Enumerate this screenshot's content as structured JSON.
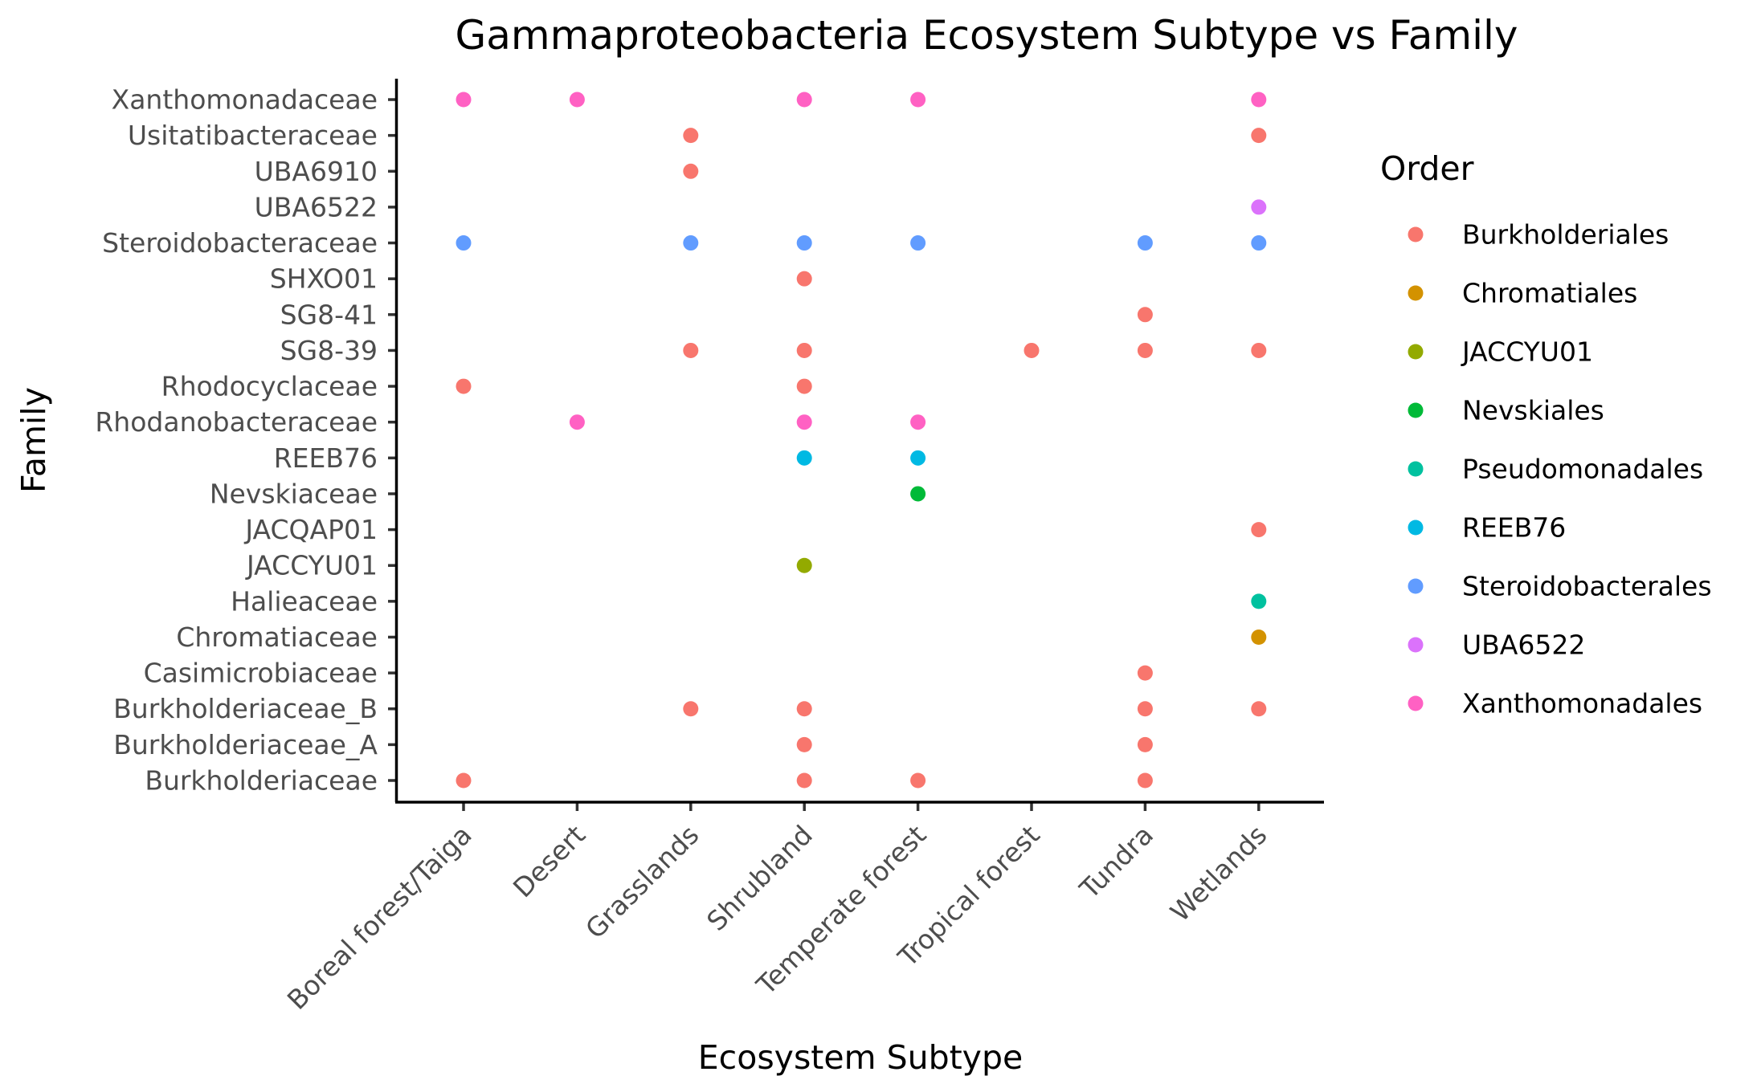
{
  "chart_data": {
    "type": "scatter",
    "title": "Gammaproteobacteria Ecosystem Subtype vs Family",
    "xlabel": "Ecosystem Subtype",
    "ylabel": "Family",
    "x_categories": [
      "Boreal forest/Taiga",
      "Desert",
      "Grasslands",
      "Shrubland",
      "Temperate forest",
      "Tropical forest",
      "Tundra",
      "Wetlands"
    ],
    "y_categories": [
      "Burkholderiaceae",
      "Burkholderiaceae_A",
      "Burkholderiaceae_B",
      "Casimicrobiaceae",
      "Chromatiaceae",
      "Halieaceae",
      "JACCYU01",
      "JACQAP01",
      "Nevskiaceae",
      "REEB76",
      "Rhodanobacteraceae",
      "Rhodocyclaceae",
      "SG8-39",
      "SG8-41",
      "SHXO01",
      "Steroidobacteraceae",
      "UBA6522",
      "UBA6910",
      "Usitatibacteraceae",
      "Xanthomonadaceae"
    ],
    "legend": {
      "title": "Order",
      "placement": "right",
      "entries": [
        {
          "name": "Burkholderiales",
          "color": "#F8766D"
        },
        {
          "name": "Chromatiales",
          "color": "#D39200"
        },
        {
          "name": "JACCYU01",
          "color": "#93AA00"
        },
        {
          "name": "Nevskiales",
          "color": "#00BA38"
        },
        {
          "name": "Pseudomonadales",
          "color": "#00C19F"
        },
        {
          "name": "REEB76",
          "color": "#00B9E3"
        },
        {
          "name": "Steroidobacterales",
          "color": "#619CFF"
        },
        {
          "name": "UBA6522",
          "color": "#DB72FB"
        },
        {
          "name": "Xanthomonadales",
          "color": "#FF61C3"
        }
      ]
    },
    "grid": false,
    "points": [
      {
        "x": "Boreal forest/Taiga",
        "y": "Xanthomonadaceae",
        "order": "Xanthomonadales"
      },
      {
        "x": "Desert",
        "y": "Xanthomonadaceae",
        "order": "Xanthomonadales"
      },
      {
        "x": "Shrubland",
        "y": "Xanthomonadaceae",
        "order": "Xanthomonadales"
      },
      {
        "x": "Temperate forest",
        "y": "Xanthomonadaceae",
        "order": "Xanthomonadales"
      },
      {
        "x": "Wetlands",
        "y": "Xanthomonadaceae",
        "order": "Xanthomonadales"
      },
      {
        "x": "Grasslands",
        "y": "Usitatibacteraceae",
        "order": "Burkholderiales"
      },
      {
        "x": "Wetlands",
        "y": "Usitatibacteraceae",
        "order": "Burkholderiales"
      },
      {
        "x": "Grasslands",
        "y": "UBA6910",
        "order": "Burkholderiales"
      },
      {
        "x": "Wetlands",
        "y": "UBA6522",
        "order": "UBA6522"
      },
      {
        "x": "Boreal forest/Taiga",
        "y": "Steroidobacteraceae",
        "order": "Steroidobacterales"
      },
      {
        "x": "Grasslands",
        "y": "Steroidobacteraceae",
        "order": "Steroidobacterales"
      },
      {
        "x": "Shrubland",
        "y": "Steroidobacteraceae",
        "order": "Steroidobacterales"
      },
      {
        "x": "Temperate forest",
        "y": "Steroidobacteraceae",
        "order": "Steroidobacterales"
      },
      {
        "x": "Tundra",
        "y": "Steroidobacteraceae",
        "order": "Steroidobacterales"
      },
      {
        "x": "Wetlands",
        "y": "Steroidobacteraceae",
        "order": "Steroidobacterales"
      },
      {
        "x": "Shrubland",
        "y": "SHXO01",
        "order": "Burkholderiales"
      },
      {
        "x": "Tundra",
        "y": "SG8-41",
        "order": "Burkholderiales"
      },
      {
        "x": "Grasslands",
        "y": "SG8-39",
        "order": "Burkholderiales"
      },
      {
        "x": "Shrubland",
        "y": "SG8-39",
        "order": "Burkholderiales"
      },
      {
        "x": "Tropical forest",
        "y": "SG8-39",
        "order": "Burkholderiales"
      },
      {
        "x": "Tundra",
        "y": "SG8-39",
        "order": "Burkholderiales"
      },
      {
        "x": "Wetlands",
        "y": "SG8-39",
        "order": "Burkholderiales"
      },
      {
        "x": "Boreal forest/Taiga",
        "y": "Rhodocyclaceae",
        "order": "Burkholderiales"
      },
      {
        "x": "Shrubland",
        "y": "Rhodocyclaceae",
        "order": "Burkholderiales"
      },
      {
        "x": "Desert",
        "y": "Rhodanobacteraceae",
        "order": "Xanthomonadales"
      },
      {
        "x": "Shrubland",
        "y": "Rhodanobacteraceae",
        "order": "Xanthomonadales"
      },
      {
        "x": "Temperate forest",
        "y": "Rhodanobacteraceae",
        "order": "Xanthomonadales"
      },
      {
        "x": "Shrubland",
        "y": "REEB76",
        "order": "REEB76"
      },
      {
        "x": "Temperate forest",
        "y": "REEB76",
        "order": "REEB76"
      },
      {
        "x": "Temperate forest",
        "y": "Nevskiaceae",
        "order": "Nevskiales"
      },
      {
        "x": "Wetlands",
        "y": "JACQAP01",
        "order": "Burkholderiales"
      },
      {
        "x": "Shrubland",
        "y": "JACCYU01",
        "order": "JACCYU01"
      },
      {
        "x": "Wetlands",
        "y": "Halieaceae",
        "order": "Pseudomonadales"
      },
      {
        "x": "Wetlands",
        "y": "Chromatiaceae",
        "order": "Chromatiales"
      },
      {
        "x": "Tundra",
        "y": "Casimicrobiaceae",
        "order": "Burkholderiales"
      },
      {
        "x": "Grasslands",
        "y": "Burkholderiaceae_B",
        "order": "Burkholderiales"
      },
      {
        "x": "Shrubland",
        "y": "Burkholderiaceae_B",
        "order": "Burkholderiales"
      },
      {
        "x": "Tundra",
        "y": "Burkholderiaceae_B",
        "order": "Burkholderiales"
      },
      {
        "x": "Wetlands",
        "y": "Burkholderiaceae_B",
        "order": "Burkholderiales"
      },
      {
        "x": "Shrubland",
        "y": "Burkholderiaceae_A",
        "order": "Burkholderiales"
      },
      {
        "x": "Tundra",
        "y": "Burkholderiaceae_A",
        "order": "Burkholderiales"
      },
      {
        "x": "Boreal forest/Taiga",
        "y": "Burkholderiaceae",
        "order": "Burkholderiales"
      },
      {
        "x": "Shrubland",
        "y": "Burkholderiaceae",
        "order": "Burkholderiales"
      },
      {
        "x": "Temperate forest",
        "y": "Burkholderiaceae",
        "order": "Burkholderiales"
      },
      {
        "x": "Tundra",
        "y": "Burkholderiaceae",
        "order": "Burkholderiales"
      }
    ]
  }
}
